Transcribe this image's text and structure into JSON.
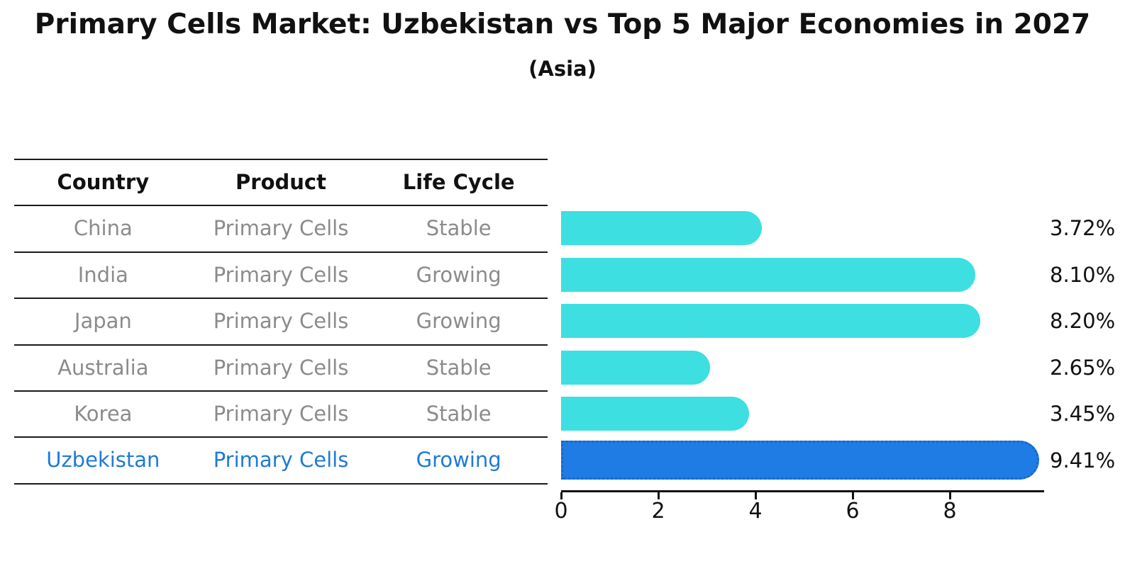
{
  "header": {
    "title": "Primary Cells Market: Uzbekistan vs Top 5 Major Economies in 2027",
    "subtitle": "(Asia)"
  },
  "table": {
    "headers": [
      "Country",
      "Product",
      "Life Cycle"
    ],
    "rows": [
      {
        "country": "China",
        "product": "Primary Cells",
        "life_cycle": "Stable"
      },
      {
        "country": "India",
        "product": "Primary Cells",
        "life_cycle": "Growing"
      },
      {
        "country": "Japan",
        "product": "Primary Cells",
        "life_cycle": "Growing"
      },
      {
        "country": "Australia",
        "product": "Primary Cells",
        "life_cycle": "Stable"
      },
      {
        "country": "Korea",
        "product": "Primary Cells",
        "life_cycle": "Stable"
      },
      {
        "country": "Uzbekistan",
        "product": "Primary Cells",
        "life_cycle": "Growing"
      }
    ],
    "highlight_row_index": 5
  },
  "chart_data": {
    "type": "bar",
    "orientation": "horizontal",
    "categories": [
      "China",
      "India",
      "Japan",
      "Australia",
      "Korea",
      "Uzbekistan"
    ],
    "values": [
      3.72,
      8.1,
      8.2,
      2.65,
      3.45,
      9.41
    ],
    "value_labels": [
      "3.72%",
      "8.10%",
      "8.20%",
      "2.65%",
      "3.45%",
      "9.41%"
    ],
    "xticks": [
      "0",
      "2",
      "4",
      "6",
      "8"
    ],
    "xlim": [
      0,
      9.9
    ],
    "grid": false,
    "legend": "none",
    "highlight_index": 5,
    "bar_color": "#3ddfe0",
    "highlight_color": "#1e7ce4",
    "highlight_border_color": "#1a66c9"
  },
  "colors": {
    "text": "#111111",
    "muted_text": "#8b8b8b",
    "line": "#1a1a1a",
    "highlight_text": "#1f7ad6"
  }
}
